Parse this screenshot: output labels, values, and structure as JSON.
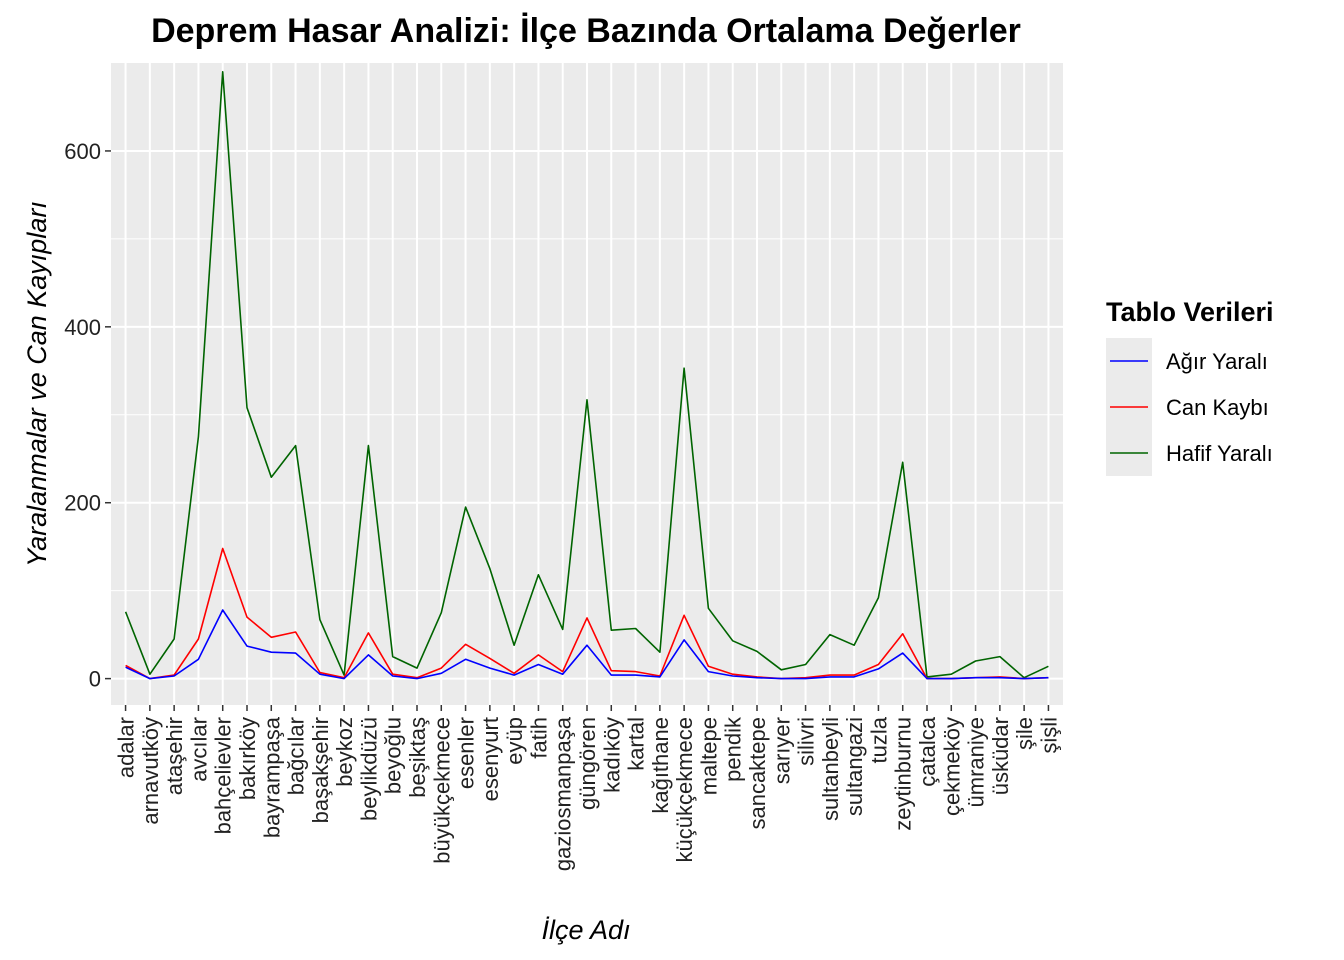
{
  "chart_data": {
    "type": "line",
    "title": "Deprem Hasar Analizi: İlçe Bazında Ortalama Değerler",
    "xlabel": "İlçe Adı",
    "ylabel": "Yaralanmalar ve Can Kayıpları",
    "ylim": [
      -30,
      700
    ],
    "yticks": [
      0,
      200,
      400,
      600
    ],
    "grid": true,
    "legend": {
      "title": "Tablo Verileri",
      "placement": "right"
    },
    "categories": [
      "adalar",
      "arnavutköy",
      "ataşehir",
      "avcılar",
      "bahçelievler",
      "bakırköy",
      "bayrampaşa",
      "bağcılar",
      "başakşehir",
      "beykoz",
      "beylikdüzü",
      "beyoğlu",
      "beşiktaş",
      "büyükçekmece",
      "esenler",
      "esenyurt",
      "eyüp",
      "fatih",
      "gaziosmanpaşa",
      "güngören",
      "kadıköy",
      "kartal",
      "kağıthane",
      "küçükçekmece",
      "maltepe",
      "pendik",
      "sancaktepe",
      "sarıyer",
      "silivri",
      "sultanbeyli",
      "sultangazi",
      "tuzla",
      "zeytinburnu",
      "çatalca",
      "çekmeköy",
      "ümraniye",
      "üsküdar",
      "şile",
      "şişli"
    ],
    "series": [
      {
        "name": "Ağır Yaralı",
        "color": "#0000ff",
        "values": [
          13,
          0,
          3,
          22,
          78,
          37,
          30,
          29,
          5,
          0,
          27,
          3,
          0,
          6,
          22,
          12,
          4,
          16,
          5,
          38,
          4,
          4,
          2,
          44,
          8,
          3,
          1,
          0,
          0,
          2,
          2,
          11,
          29,
          0,
          0,
          1,
          1,
          0,
          1
        ]
      },
      {
        "name": "Can Kaybı",
        "color": "#ff0000",
        "values": [
          15,
          0,
          4,
          45,
          148,
          70,
          47,
          53,
          7,
          1,
          52,
          5,
          1,
          12,
          39,
          23,
          6,
          27,
          8,
          69,
          9,
          8,
          3,
          72,
          14,
          5,
          2,
          0,
          1,
          4,
          4,
          16,
          51,
          0,
          0,
          1,
          2,
          0,
          1
        ]
      },
      {
        "name": "Hafif Yaralı",
        "color": "#006400",
        "values": [
          76,
          5,
          45,
          275,
          690,
          308,
          229,
          265,
          67,
          4,
          265,
          25,
          12,
          75,
          195,
          125,
          38,
          118,
          56,
          317,
          55,
          57,
          30,
          353,
          80,
          43,
          31,
          10,
          16,
          50,
          38,
          92,
          246,
          2,
          5,
          20,
          25,
          1,
          14
        ]
      }
    ]
  }
}
